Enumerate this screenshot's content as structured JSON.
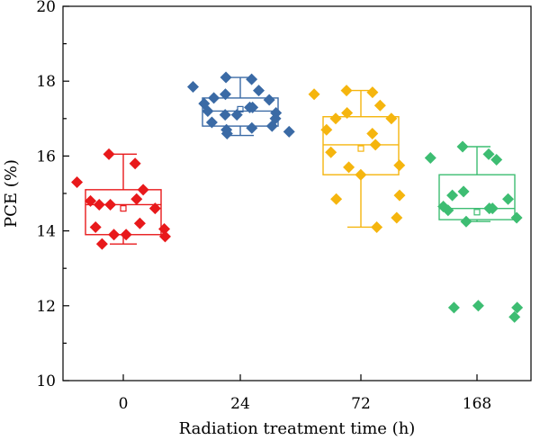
{
  "chart_data": {
    "type": "box",
    "title": "",
    "xlabel": "Radiation treatment time (h)",
    "ylabel": "PCE (%)",
    "ylim": [
      10,
      20
    ],
    "yticks": [
      10,
      12,
      14,
      16,
      18,
      20
    ],
    "categories": [
      "0",
      "24",
      "72",
      "168"
    ],
    "grid": false,
    "legend": "none",
    "series": [
      {
        "category": "0",
        "color": "#e8191b",
        "box": {
          "whisker_low": 13.65,
          "q1": 13.9,
          "median": 14.7,
          "mean": 14.6,
          "q3": 15.1,
          "whisker_high": 16.05
        },
        "points": [
          16.05,
          15.8,
          15.3,
          15.1,
          14.7,
          14.7,
          14.6,
          14.8,
          14.85,
          14.2,
          14.1,
          14.05,
          13.9,
          13.9,
          13.85,
          13.65
        ]
      },
      {
        "category": "24",
        "color": "#3a6aa5",
        "box": {
          "whisker_low": 16.55,
          "q1": 16.8,
          "median": 17.2,
          "mean": 17.25,
          "q3": 17.55,
          "whisker_high": 18.1
        },
        "points": [
          18.1,
          18.05,
          17.85,
          17.75,
          17.65,
          17.55,
          17.5,
          17.4,
          17.3,
          17.3,
          17.2,
          17.15,
          17.1,
          17.1,
          17.0,
          16.9,
          16.8,
          16.75,
          16.7,
          16.65,
          16.6
        ]
      },
      {
        "category": "72",
        "color": "#f5b50e",
        "box": {
          "whisker_low": 14.1,
          "q1": 15.5,
          "median": 16.3,
          "mean": 16.2,
          "q3": 17.05,
          "whisker_high": 17.75
        },
        "points": [
          17.75,
          17.7,
          17.65,
          17.35,
          17.15,
          17.0,
          17.0,
          16.7,
          16.6,
          16.3,
          16.1,
          15.75,
          15.7,
          15.5,
          14.95,
          14.85,
          14.35,
          14.1
        ]
      },
      {
        "category": "168",
        "color": "#3dbd72",
        "box": {
          "whisker_low": 14.25,
          "q1": 14.3,
          "median": 14.6,
          "mean": 14.5,
          "q3": 15.5,
          "whisker_high": 16.25
        },
        "points": [
          16.25,
          16.05,
          15.95,
          15.9,
          15.05,
          14.95,
          14.85,
          14.65,
          14.6,
          14.6,
          14.55,
          14.35,
          14.25,
          12.0,
          11.95,
          11.95,
          11.7
        ]
      }
    ]
  }
}
